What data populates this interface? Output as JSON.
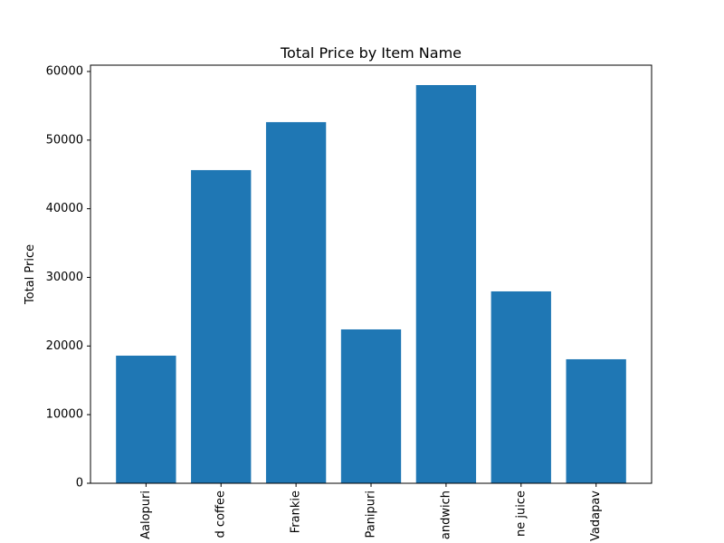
{
  "chart_data": {
    "type": "bar",
    "title": "Total Price by Item Name",
    "y_label": "Total Price",
    "categories": [
      "Aalopuri",
      "d coffee",
      "Frankie",
      "Panipuri",
      "andwich",
      "ne juice",
      "Vadapav"
    ],
    "values": [
      18595,
      45630,
      52620,
      22420,
      58020,
      27960,
      18070
    ],
    "color": "#1f77b4",
    "ylim": [
      0,
      60921
    ],
    "yticks": [
      0,
      10000,
      20000,
      30000,
      40000,
      50000,
      60000
    ],
    "grid": false
  }
}
